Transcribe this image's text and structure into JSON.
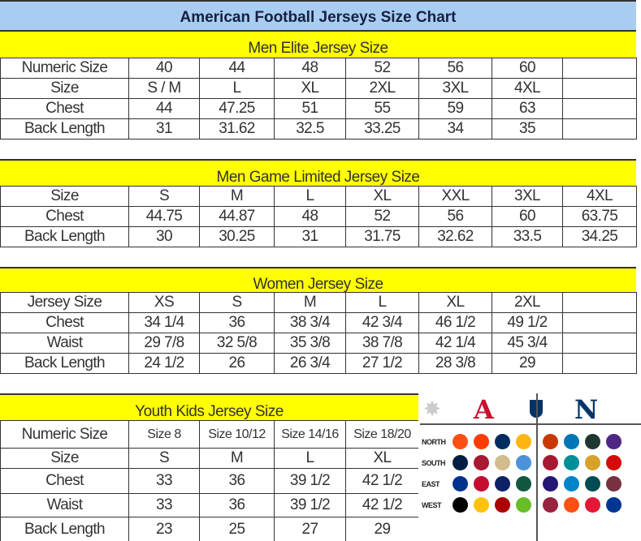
{
  "title": "American Football Jerseys Size Chart",
  "men_elite": {
    "heading": "Men Elite Jersey Size",
    "rows": [
      {
        "label": "Numeric Size",
        "values": [
          "40",
          "44",
          "48",
          "52",
          "56",
          "60",
          ""
        ]
      },
      {
        "label": "Size",
        "values": [
          "S / M",
          "L",
          "XL",
          "2XL",
          "3XL",
          "4XL",
          ""
        ]
      },
      {
        "label": "Chest",
        "values": [
          "44",
          "47.25",
          "51",
          "55",
          "59",
          "63",
          ""
        ]
      },
      {
        "label": "Back Length",
        "values": [
          "31",
          "31.62",
          "32.5",
          "33.25",
          "34",
          "35",
          ""
        ]
      }
    ]
  },
  "men_game": {
    "heading": "Men Game Limited Jersey Size",
    "rows": [
      {
        "label": "Size",
        "values": [
          "S",
          "M",
          "L",
          "XL",
          "XXL",
          "3XL",
          "4XL"
        ]
      },
      {
        "label": "Chest",
        "values": [
          "44.75",
          "44.87",
          "48",
          "52",
          "56",
          "60",
          "63.75"
        ]
      },
      {
        "label": "Back Length",
        "values": [
          "30",
          "30.25",
          "31",
          "31.75",
          "32.62",
          "33.5",
          "34.25"
        ]
      }
    ]
  },
  "women": {
    "heading": "Women Jersey Size",
    "rows": [
      {
        "label": "Jersey Size",
        "values": [
          "XS",
          "S",
          "M",
          "L",
          "XL",
          "2XL",
          ""
        ]
      },
      {
        "label": "Chest",
        "values": [
          "34 1/4",
          "36",
          "38 3/4",
          "42 3/4",
          "46 1/2",
          "49 1/2",
          ""
        ]
      },
      {
        "label": "Waist",
        "values": [
          "29 7/8",
          "32 5/8",
          "35 3/8",
          "38 7/8",
          "42 1/4",
          "45 3/4",
          ""
        ]
      },
      {
        "label": "Back Length",
        "values": [
          "24 1/2",
          "26",
          "26 3/4",
          "27 1/2",
          "28 3/8",
          "29",
          ""
        ]
      }
    ]
  },
  "youth": {
    "heading": "Youth Kids Jersey Size",
    "rows": [
      {
        "label": "Numeric Size",
        "values": [
          "Size 8",
          "Size 10/12",
          "Size 14/16",
          "Size 18/20"
        ]
      },
      {
        "label": "Size",
        "values": [
          "S",
          "M",
          "L",
          "XL"
        ]
      },
      {
        "label": "Chest",
        "values": [
          "33",
          "36",
          "39 1/2",
          "42 1/2"
        ]
      },
      {
        "label": "Waist",
        "values": [
          "33",
          "36",
          "39 1/2",
          "42 1/2"
        ]
      },
      {
        "label": "Back Length",
        "values": [
          "23",
          "25",
          "27",
          "29"
        ]
      }
    ]
  },
  "logos": {
    "afc": "A",
    "nfc": "N",
    "afc_color": "#c8102e",
    "nfc_color": "#013369",
    "divisions": [
      "NORTH",
      "SOUTH",
      "EAST",
      "WEST"
    ],
    "afc_team_colors": [
      [
        "#fb4f14",
        "#ff3c00",
        "#002c5f",
        "#ffb612"
      ],
      [
        "#041e42",
        "#a71930",
        "#d3bc8d",
        "#4b92db"
      ],
      [
        "#00338d",
        "#c60c30",
        "#0b2265",
        "#125740"
      ],
      [
        "#000000",
        "#ffc20e",
        "#aa0000",
        "#69be28"
      ]
    ],
    "nfc_team_colors": [
      [
        "#c83803",
        "#0076b6",
        "#203731",
        "#4f2683"
      ],
      [
        "#a71930",
        "#008e97",
        "#d7a22a",
        "#d50a0a"
      ],
      [
        "#241773",
        "#0085ca",
        "#004c54",
        "#773141"
      ],
      [
        "#97233f",
        "#fb4f14",
        "#e31837",
        "#003594"
      ]
    ]
  }
}
